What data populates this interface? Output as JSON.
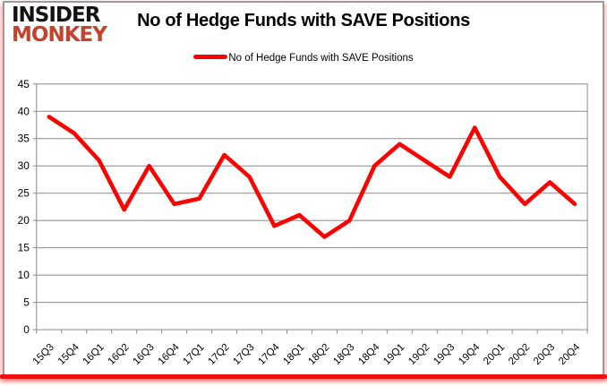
{
  "logo": {
    "line1": "INSIDER",
    "line2": "MONKEY"
  },
  "header": {
    "title": "No of Hedge Funds with SAVE Positions"
  },
  "legend": {
    "label": "No of Hedge Funds with SAVE Positions"
  },
  "colors": {
    "series_line": "#fe0000",
    "logo_red": "#c2432e",
    "logo_black": "#121212",
    "grid": "#8a8a8a",
    "bottom_bar": "#ee0f0f",
    "frame_border": "#9a9a9a",
    "text": "#000000"
  },
  "chart_data": {
    "type": "line",
    "title": "No of Hedge Funds with SAVE Positions",
    "categories": [
      "15Q3",
      "15Q4",
      "16Q1",
      "16Q2",
      "16Q3",
      "16Q4",
      "17Q1",
      "17Q2",
      "17Q3",
      "17Q4",
      "18Q1",
      "18Q2",
      "18Q3",
      "18Q4",
      "19Q1",
      "19Q2",
      "19Q3",
      "19Q4",
      "20Q1",
      "20Q2",
      "20Q3",
      "20Q4"
    ],
    "series": [
      {
        "name": "No of Hedge Funds with SAVE Positions",
        "values": [
          39,
          36,
          31,
          22,
          30,
          23,
          24,
          32,
          28,
          19,
          21,
          17,
          20,
          30,
          34,
          31,
          28,
          37,
          28,
          23,
          27,
          23
        ]
      }
    ],
    "xlabel": "",
    "ylabel": "",
    "ylim": [
      0,
      45
    ],
    "yticks": [
      0,
      5,
      10,
      15,
      20,
      25,
      30,
      35,
      40,
      45
    ],
    "grid": "horizontal",
    "legend_position": "top-center",
    "x_label_rotation": -45
  }
}
